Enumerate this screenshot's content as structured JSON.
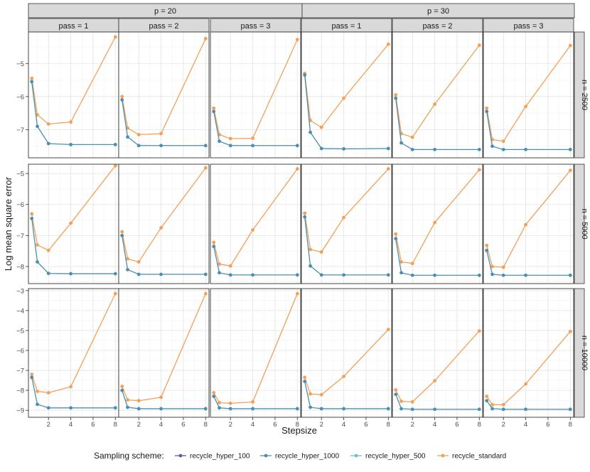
{
  "chart_data": {
    "type": "line",
    "ylabel": "Log mean square error",
    "xlabel": "Stepsize",
    "x": [
      0.5,
      1,
      2,
      4,
      8
    ],
    "x_ticks": [
      2,
      4,
      6,
      8
    ],
    "xlim": [
      0.2,
      8.3
    ],
    "column_groups": [
      {
        "label": "p = 20",
        "passes": [
          "pass = 1",
          "pass = 2",
          "pass = 3"
        ]
      },
      {
        "label": "p = 30",
        "passes": [
          "pass = 1",
          "pass = 2",
          "pass = 3"
        ]
      }
    ],
    "rows": [
      {
        "label": "n = 2500",
        "ylim": [
          -7.85,
          -4.05
        ],
        "yticks": [
          -5,
          -6,
          -7
        ]
      },
      {
        "label": "n = 5000",
        "ylim": [
          -8.55,
          -4.7
        ],
        "yticks": [
          -5,
          -6,
          -7,
          -8
        ]
      },
      {
        "label": "n = 10000",
        "ylim": [
          -9.35,
          -2.9
        ],
        "yticks": [
          -3,
          -4,
          -5,
          -6,
          -7,
          -8,
          -9
        ]
      }
    ],
    "legend": {
      "title": "Sampling scheme:",
      "position": "bottom",
      "entries": [
        {
          "name": "recycle_hyper_100",
          "color": "#5b5ea6"
        },
        {
          "name": "recycle_hyper_1000",
          "color": "#4a8fb0"
        },
        {
          "name": "recycle_hyper_500",
          "color": "#6cc5c0"
        },
        {
          "name": "recycle_standard",
          "color": "#f2a058"
        }
      ]
    },
    "panels": [
      [
        {
          "hyper": [
            -5.55,
            -6.9,
            -7.42,
            -7.45,
            -7.45
          ],
          "standard": [
            -5.45,
            -6.55,
            -6.83,
            -6.77,
            -4.2
          ]
        },
        {
          "hyper": [
            -6.1,
            -7.22,
            -7.48,
            -7.48,
            -7.48
          ],
          "standard": [
            -6.0,
            -6.95,
            -7.15,
            -7.12,
            -4.25
          ]
        },
        {
          "hyper": [
            -6.45,
            -7.35,
            -7.48,
            -7.48,
            -7.48
          ],
          "standard": [
            -6.35,
            -7.15,
            -7.27,
            -7.26,
            -4.28
          ]
        },
        {
          "hyper": [
            -5.35,
            -7.08,
            -7.57,
            -7.58,
            -7.57
          ],
          "standard": [
            -5.3,
            -6.72,
            -6.93,
            -6.05,
            -4.42
          ]
        },
        {
          "hyper": [
            -6.05,
            -7.4,
            -7.6,
            -7.6,
            -7.6
          ],
          "standard": [
            -5.95,
            -7.12,
            -7.23,
            -6.23,
            -4.45
          ]
        },
        {
          "hyper": [
            -6.45,
            -7.5,
            -7.6,
            -7.6,
            -7.6
          ],
          "standard": [
            -6.35,
            -7.3,
            -7.35,
            -6.3,
            -4.46
          ]
        }
      ],
      [
        {
          "hyper": [
            -6.45,
            -7.85,
            -8.22,
            -8.23,
            -8.23
          ],
          "standard": [
            -6.3,
            -7.3,
            -7.48,
            -6.6,
            -4.75
          ]
        },
        {
          "hyper": [
            -7.0,
            -8.1,
            -8.25,
            -8.25,
            -8.25
          ],
          "standard": [
            -6.88,
            -7.75,
            -7.85,
            -6.75,
            -4.82
          ]
        },
        {
          "hyper": [
            -7.35,
            -8.2,
            -8.27,
            -8.27,
            -8.27
          ],
          "standard": [
            -7.22,
            -7.92,
            -7.98,
            -6.82,
            -4.85
          ]
        },
        {
          "hyper": [
            -6.4,
            -7.98,
            -8.27,
            -8.27,
            -8.27
          ],
          "standard": [
            -6.28,
            -7.45,
            -7.53,
            -6.42,
            -4.85
          ]
        },
        {
          "hyper": [
            -7.1,
            -8.2,
            -8.28,
            -8.28,
            -8.28
          ],
          "standard": [
            -6.95,
            -7.85,
            -7.9,
            -6.58,
            -4.88
          ]
        },
        {
          "hyper": [
            -7.48,
            -8.25,
            -8.28,
            -8.28,
            -8.28
          ],
          "standard": [
            -7.32,
            -8.0,
            -8.02,
            -6.65,
            -4.9
          ]
        }
      ],
      [
        {
          "hyper": [
            -7.35,
            -8.7,
            -8.88,
            -8.88,
            -8.88
          ],
          "standard": [
            -7.2,
            -8.05,
            -8.12,
            -7.82,
            -3.15
          ]
        },
        {
          "hyper": [
            -8.0,
            -8.85,
            -8.92,
            -8.92,
            -8.92
          ],
          "standard": [
            -7.8,
            -8.48,
            -8.52,
            -8.35,
            -3.15
          ]
        },
        {
          "hyper": [
            -8.3,
            -8.88,
            -8.92,
            -8.92,
            -8.92
          ],
          "standard": [
            -8.12,
            -8.62,
            -8.65,
            -8.58,
            -3.15
          ]
        },
        {
          "hyper": [
            -7.55,
            -8.85,
            -8.92,
            -8.92,
            -8.92
          ],
          "standard": [
            -7.35,
            -8.18,
            -8.22,
            -7.3,
            -4.95
          ]
        },
        {
          "hyper": [
            -8.2,
            -8.92,
            -8.95,
            -8.95,
            -8.95
          ],
          "standard": [
            -7.98,
            -8.55,
            -8.58,
            -7.52,
            -5.02
          ]
        },
        {
          "hyper": [
            -8.52,
            -8.92,
            -8.95,
            -8.95,
            -8.95
          ],
          "standard": [
            -8.3,
            -8.72,
            -8.72,
            -7.68,
            -5.05
          ]
        }
      ]
    ]
  }
}
